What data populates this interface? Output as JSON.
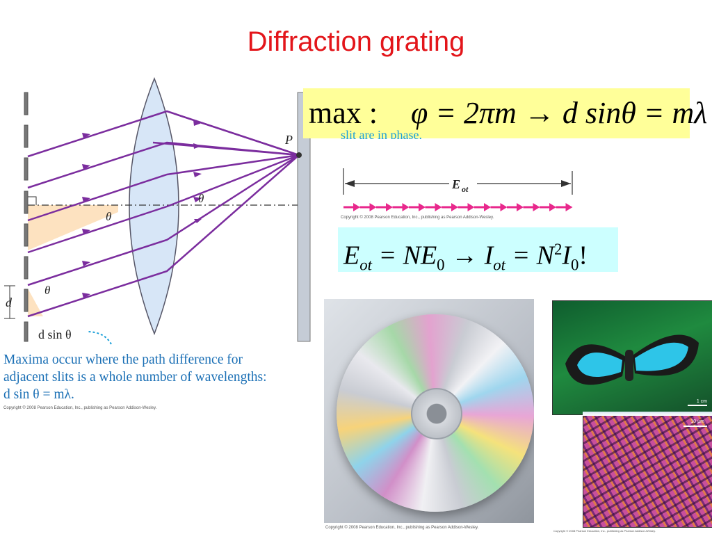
{
  "slide": {
    "title": "Diffraction grating"
  },
  "formula_max": {
    "lead": "max :",
    "phi_part": "φ = 2πm",
    "arrow": "→",
    "result": "d sinθ = mλ"
  },
  "formula_intensity": {
    "E": "E",
    "ot": "ot",
    "eq1": " = NE",
    "sub0": "0",
    "arrow": " → ",
    "I": "I",
    "eq2": " = N",
    "sup2": "2",
    "I0": "I",
    "bang": "!"
  },
  "grating_figure": {
    "label_P": "P",
    "label_theta": "θ",
    "label_d": "d",
    "label_dsin": "d sin θ",
    "caption_line1": "Maxima occur where the path difference for",
    "caption_line2": "adjacent slits is a whole number of wavelengths:",
    "caption_line3": "d sin θ = mλ.",
    "copyright": "Copyright © 2008 Pearson Education, Inc., publishing as Pearson Addison-Wesley."
  },
  "phasor_figure": {
    "cut_text": "slit are in phase.",
    "label_E": "E",
    "label_sub": "ot",
    "copyright": "Copyright © 2008 Pearson Education, Inc., publishing as Pearson Addison-Wesley."
  },
  "cd_photo": {
    "copyright": "Copyright © 2008 Pearson Education, Inc., publishing as Pearson Addison-Wesley."
  },
  "butterfly_photo": {
    "scale_1cm": "1 cm",
    "scale_10um": "10 μm",
    "copyright": "Copyright © 2008 Pearson Education, Inc., publishing as Pearson Addison-Wesley."
  },
  "colors": {
    "title": "#e3151a",
    "ray": "#7b2d9e",
    "caption": "#1a6fb5",
    "arrow_magenta": "#e8288c"
  }
}
